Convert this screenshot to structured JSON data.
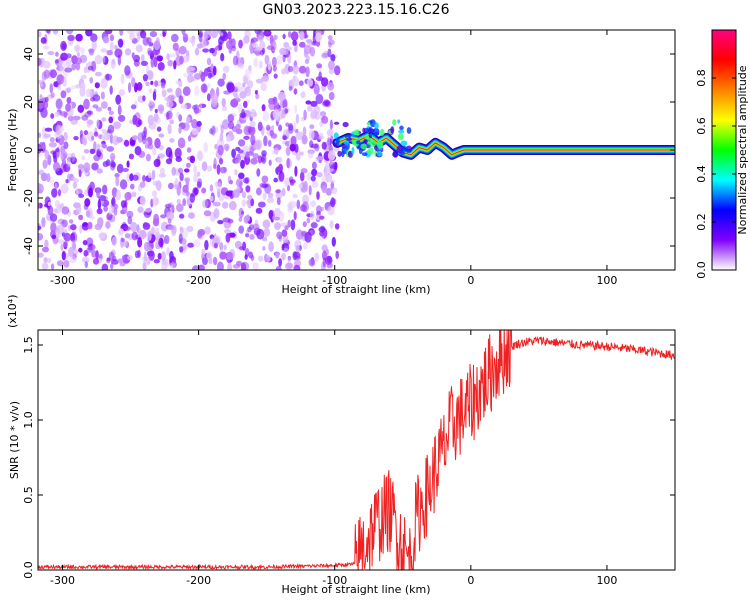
{
  "title": "GN03.2023.223.15.16.C26",
  "chart_data": [
    {
      "type": "heatmap",
      "xlabel": "Height of straight line (km)",
      "ylabel": "Frequency (Hz)",
      "xlim": [
        -318,
        150
      ],
      "ylim": [
        -50,
        50
      ],
      "x_ticks": [
        -300,
        -200,
        -100,
        0,
        100
      ],
      "x_tick_labels": [
        "-300",
        "-200",
        "-100",
        "0",
        "100"
      ],
      "y_ticks": [
        -40,
        -20,
        0,
        20,
        40
      ],
      "y_tick_labels": [
        "-40",
        "-20",
        "0",
        "20",
        "40"
      ],
      "colorbar": {
        "label": "Normalized spectral amplitude",
        "range": [
          0,
          1
        ],
        "ticks": [
          0.0,
          0.2,
          0.4,
          0.6,
          0.8
        ],
        "tick_labels": [
          "0.0",
          "0.2",
          "0.4",
          "0.6",
          "0.8"
        ],
        "colors": [
          "#ffffff",
          "#8000ff",
          "#0000ff",
          "#00ffff",
          "#00ff00",
          "#ffff00",
          "#ff8000",
          "#ff0000",
          "#ff0080"
        ]
      },
      "noise_region_x": [
        -318,
        -98
      ],
      "signal_track": {
        "x": [
          -98,
          -90,
          -82,
          -75,
          -68,
          -62,
          -56,
          -50,
          -44,
          -38,
          -32,
          -26,
          -20,
          -14,
          -10,
          -5,
          0,
          50,
          100,
          150
        ],
        "freq": [
          3,
          5,
          4,
          6,
          3,
          5,
          2,
          -1,
          -2,
          1,
          0,
          3,
          1,
          -2,
          -1,
          0,
          0,
          0,
          0,
          0
        ]
      }
    },
    {
      "type": "line",
      "xlabel": "Height of straight line (km)",
      "ylabel": "SNR (10 * v/v)",
      "y_multiplier": "(x10⁴)",
      "xlim": [
        -318,
        150
      ],
      "ylim": [
        0,
        1.6
      ],
      "x_ticks": [
        -300,
        -200,
        -100,
        0,
        100
      ],
      "x_tick_labels": [
        "-300",
        "-200",
        "-100",
        "0",
        "100"
      ],
      "y_ticks": [
        0.0,
        0.5,
        1.0,
        1.5
      ],
      "y_tick_labels": [
        "0.0",
        "0.5",
        "1.0",
        "1.5"
      ],
      "series": [
        {
          "color": "#ee2222",
          "x": [
            -318,
            -250,
            -200,
            -150,
            -100,
            -85,
            -80,
            -75,
            -70,
            -65,
            -60,
            -55,
            -50,
            -45,
            -40,
            -35,
            -30,
            -25,
            -20,
            -15,
            -10,
            -5,
            0,
            5,
            10,
            15,
            20,
            25,
            30,
            35,
            40,
            50,
            60,
            80,
            100,
            120,
            150
          ],
          "y": [
            0.02,
            0.02,
            0.02,
            0.02,
            0.03,
            0.04,
            0.15,
            0.22,
            0.3,
            0.35,
            0.4,
            0.3,
            0.15,
            0.05,
            0.35,
            0.45,
            0.55,
            0.7,
            0.8,
            0.95,
            1.0,
            1.05,
            1.1,
            1.18,
            1.25,
            1.32,
            1.4,
            1.45,
            1.49,
            1.51,
            1.52,
            1.53,
            1.52,
            1.5,
            1.49,
            1.47,
            1.43
          ]
        }
      ]
    }
  ]
}
